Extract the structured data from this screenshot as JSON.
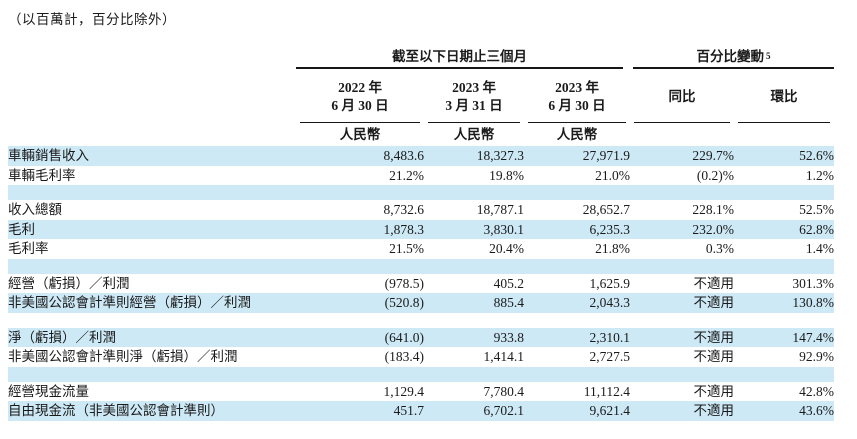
{
  "note": "（以百萬計，百分比除外）",
  "colors": {
    "row_highlight": "#cde9f6",
    "text": "#1a1a1a",
    "rule_line": "#161616",
    "background": "#ffffff"
  },
  "table": {
    "group_headers": [
      {
        "label": "截至以下日期止三個月",
        "span": 3
      },
      {
        "label": "百分比變動",
        "superscript": "5",
        "span": 2
      }
    ],
    "column_headers": [
      {
        "line1": "2022 年",
        "line2": "6 月 30 日",
        "subheader": "人民幣"
      },
      {
        "line1": "2023 年",
        "line2": "3 月 31 日",
        "subheader": "人民幣"
      },
      {
        "line1": "2023 年",
        "line2": "6 月 30 日",
        "subheader": "人民幣"
      },
      {
        "line1": "同比",
        "subheader": ""
      },
      {
        "line1": "環比",
        "subheader": ""
      }
    ],
    "rows": [
      {
        "type": "data",
        "label": "車輛銷售收入",
        "values": [
          "8,483.6",
          "18,327.3",
          "27,971.9",
          "229.7%",
          "52.6%"
        ],
        "highlight": true
      },
      {
        "type": "data",
        "label": "車輛毛利率",
        "values": [
          "21.2%",
          "19.8%",
          "21.0%",
          "(0.2)%",
          "1.2%"
        ],
        "highlight": false
      },
      {
        "type": "spacer",
        "highlight": true
      },
      {
        "type": "data",
        "label": "收入總額",
        "values": [
          "8,732.6",
          "18,787.1",
          "28,652.7",
          "228.1%",
          "52.5%"
        ],
        "highlight": false
      },
      {
        "type": "data",
        "label": "毛利",
        "values": [
          "1,878.3",
          "3,830.1",
          "6,235.3",
          "232.0%",
          "62.8%"
        ],
        "highlight": true
      },
      {
        "type": "data",
        "label": "毛利率",
        "values": [
          "21.5%",
          "20.4%",
          "21.8%",
          "0.3%",
          "1.4%"
        ],
        "highlight": false
      },
      {
        "type": "spacer",
        "highlight": true
      },
      {
        "type": "data",
        "label": "經營（虧損）／利潤",
        "values": [
          "(978.5)",
          "405.2",
          "1,625.9",
          "不適用",
          "301.3%"
        ],
        "highlight": false
      },
      {
        "type": "data",
        "label": "非美國公認會計準則經營（虧損）／利潤",
        "values": [
          "(520.8)",
          "885.4",
          "2,043.3",
          "不適用",
          "130.8%"
        ],
        "highlight": true
      },
      {
        "type": "spacer",
        "highlight": false
      },
      {
        "type": "data",
        "label": "淨（虧損）／利潤",
        "values": [
          "(641.0)",
          "933.8",
          "2,310.1",
          "不適用",
          "147.4%"
        ],
        "highlight": true
      },
      {
        "type": "data",
        "label": "非美國公認會計準則淨（虧損）／利潤",
        "values": [
          "(183.4)",
          "1,414.1",
          "2,727.5",
          "不適用",
          "92.9%"
        ],
        "highlight": false
      },
      {
        "type": "spacer",
        "highlight": true
      },
      {
        "type": "data",
        "label": "經營現金流量",
        "values": [
          "1,129.4",
          "7,780.4",
          "11,112.4",
          "不適用",
          "42.8%"
        ],
        "highlight": false
      },
      {
        "type": "data",
        "label": "自由現金流（非美國公認會計準則）",
        "values": [
          "451.7",
          "6,702.1",
          "9,621.4",
          "不適用",
          "43.6%"
        ],
        "highlight": true
      }
    ]
  }
}
